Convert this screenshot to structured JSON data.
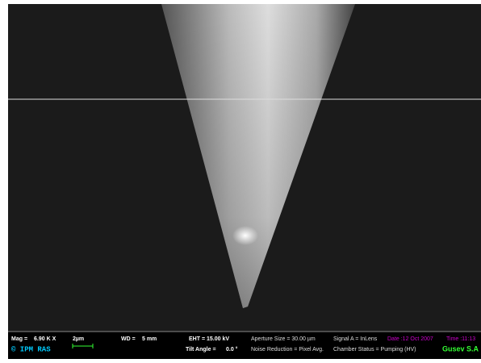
{
  "info_bar": {
    "row1": [
      "Mag = ",
      "6.90 K X",
      "2µm",
      "WD = ",
      "5 mm",
      "EHT = 15.00 kV",
      "Aperture Size = 30.00 µm",
      "Signal A = InLens",
      "Date :12 Oct 2007",
      "Time :11:13"
    ],
    "row2": [
      "© IPM RAS",
      "Tilt Angle = ",
      "0.0 °",
      "Noise Reduction = Pixel Avg.",
      "Chamber Status = Pumping (HV)",
      "Gusev S.A"
    ]
  }
}
